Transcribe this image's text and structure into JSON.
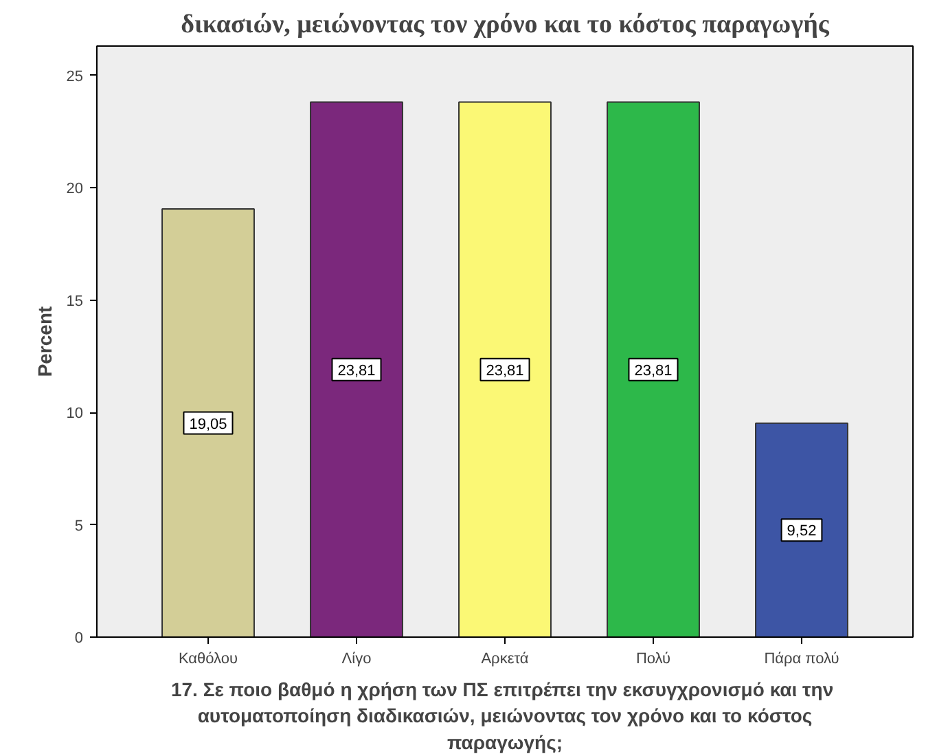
{
  "chart_data": {
    "type": "bar",
    "title": "δικασιών, μειώνοντας τον χρόνο και το κόστος παραγωγής",
    "xlabel": "17.  Σε ποιο βαθμό η χρήση των ΠΣ επιτρέπει την εκσυγχρονισμό και την\nαυτοματοποίηση διαδικασιών, μειώνοντας τον χρόνο και το κόστος\nπαραγωγής;",
    "ylabel": "Percent",
    "categories": [
      "Καθόλου",
      "Λίγο",
      "Αρκετά",
      "Πολύ",
      "Πάρα πολύ"
    ],
    "values": [
      19.05,
      23.81,
      23.81,
      23.81,
      9.52
    ],
    "colors": [
      "#d3ce97",
      "#7b287c",
      "#fbf875",
      "#2db84a",
      "#3d55a5"
    ],
    "value_labels": [
      "19,05",
      "23,81",
      "23,81",
      "23,81",
      "9,52"
    ],
    "ylim": [
      0,
      26.3
    ],
    "yticks": [
      0,
      5,
      10,
      15,
      20,
      25
    ],
    "grid": false
  }
}
